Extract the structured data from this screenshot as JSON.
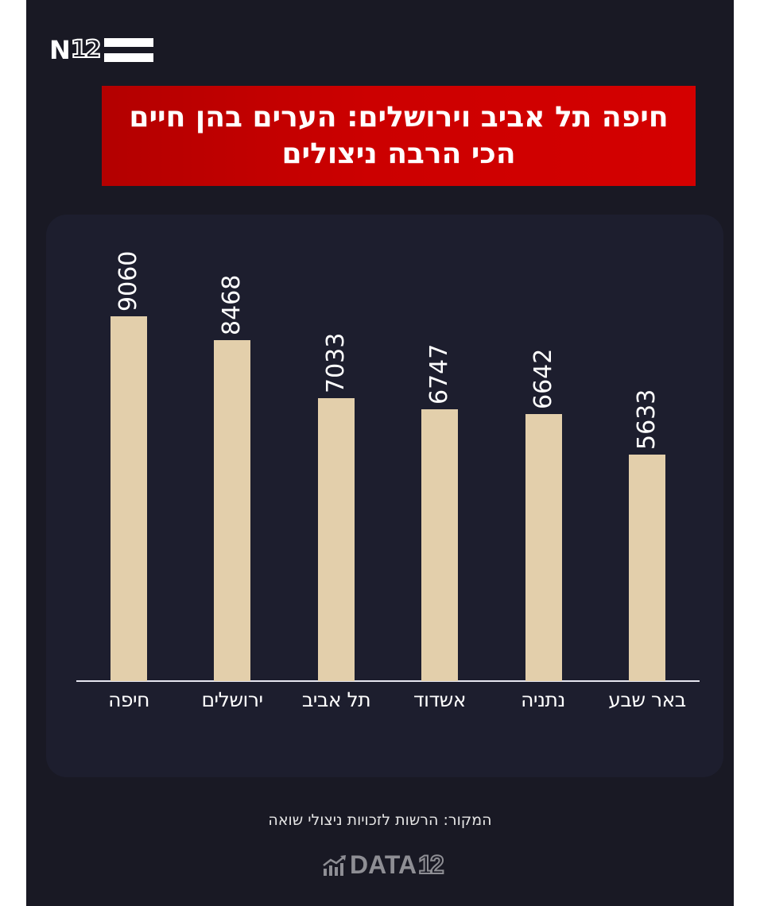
{
  "brand": {
    "logo_letter": "N",
    "logo_number": "12"
  },
  "title": {
    "line1": "חיפה תל אביב וירושלים: הערים בהן חיים",
    "line2": "הכי הרבה ניצולים"
  },
  "colors": {
    "background": "#191924",
    "panel": "#1d1e2e",
    "title_bg": "#cc0000",
    "bar": "#e3cfab",
    "text": "#ffffff"
  },
  "chart_data": {
    "type": "bar",
    "title": "חיפה תל אביב וירושלים: הערים בהן חיים הכי הרבה ניצולים",
    "categories": [
      "חיפה",
      "ירושלים",
      "תל אביב",
      "אשדוד",
      "נתניה",
      "באר שבע"
    ],
    "values": [
      9060,
      8468,
      7033,
      6747,
      6642,
      5633
    ],
    "value_labels": [
      "9060",
      "8468",
      "7033",
      "6747",
      "6642",
      "5633"
    ],
    "xlabel": "",
    "ylabel": "",
    "ylim": [
      0,
      9060
    ],
    "grid": false,
    "legend": null,
    "data_labels": "rotated -90deg above bars"
  },
  "footer": {
    "source": "המקור: הרשות לזכויות ניצולי שואה",
    "data_logo_word": "DATA",
    "data_logo_number": "12"
  }
}
